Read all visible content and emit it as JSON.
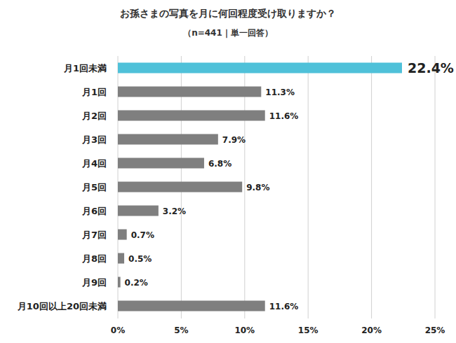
{
  "chart_data": {
    "type": "bar",
    "orientation": "horizontal",
    "title": "お孫さまの写真を月に何回程度受け取りますか？",
    "subtitle": "（n=441｜単一回答）",
    "categories": [
      "月1回未満",
      "月1回",
      "月2回",
      "月3回",
      "月4回",
      "月5回",
      "月6回",
      "月7回",
      "月8回",
      "月9回",
      "月10回以上20回未満"
    ],
    "values": [
      22.4,
      11.3,
      11.6,
      7.9,
      6.8,
      9.8,
      3.2,
      0.7,
      0.5,
      0.2,
      11.6
    ],
    "value_labels": [
      "22.4%",
      "11.3%",
      "11.6%",
      "7.9%",
      "6.8%",
      "9.8%",
      "3.2%",
      "0.7%",
      "0.5%",
      "0.2%",
      "11.6%"
    ],
    "colors": [
      "#4fc1d9",
      "#7f7f7f",
      "#7f7f7f",
      "#7f7f7f",
      "#7f7f7f",
      "#7f7f7f",
      "#7f7f7f",
      "#7f7f7f",
      "#7f7f7f",
      "#7f7f7f",
      "#7f7f7f"
    ],
    "xlim": [
      0,
      25
    ],
    "xticks": [
      {
        "value": 0,
        "label": "0%"
      },
      {
        "value": 5,
        "label": "5%"
      },
      {
        "value": 10,
        "label": "10%"
      },
      {
        "value": 15,
        "label": "15%"
      },
      {
        "value": 20,
        "label": "20%"
      },
      {
        "value": 25,
        "label": "25%"
      }
    ],
    "grid": true,
    "data_labels": true
  }
}
